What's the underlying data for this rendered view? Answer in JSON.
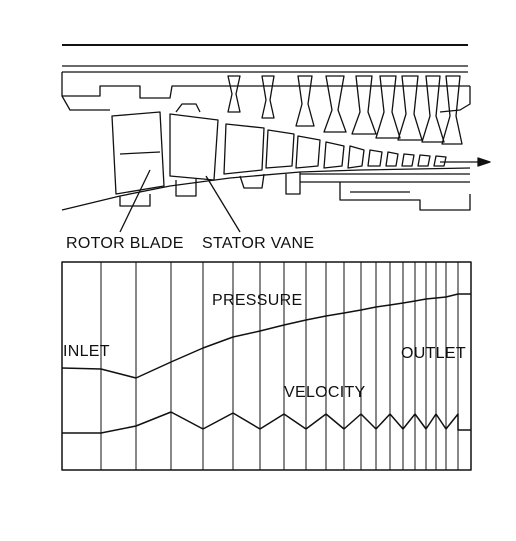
{
  "labels": {
    "rotor_blade": "ROTOR BLADE",
    "stator_vane": "STATOR VANE",
    "pressure": "PRESSURE",
    "inlet": "INLET",
    "outlet": "OUTLET",
    "velocity": "VELOCITY"
  },
  "colors": {
    "ink": "#111111",
    "background": "#ffffff"
  }
}
